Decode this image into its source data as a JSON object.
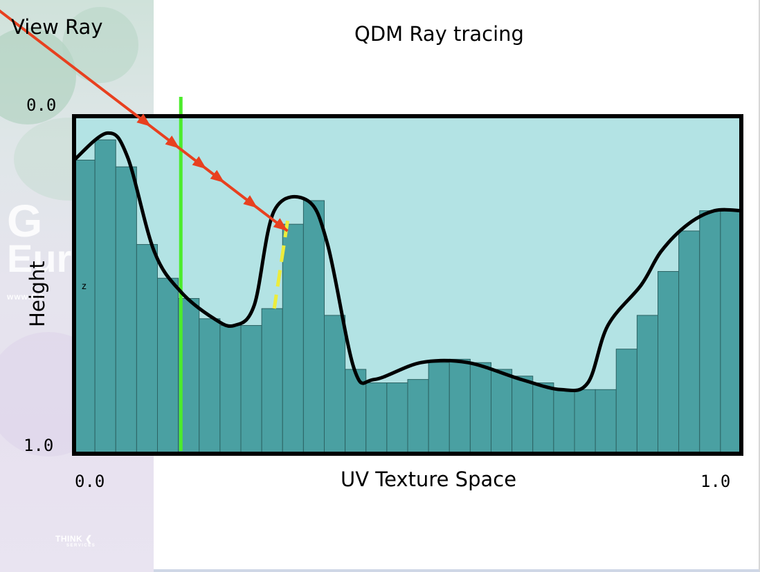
{
  "title": "QDM Ray tracing",
  "view_ray_label": "View Ray",
  "y_axis": {
    "title": "Height",
    "top_tick": "0.0",
    "bottom_tick": "1.0"
  },
  "x_axis": {
    "title": "UV Texture Space",
    "left_tick": "0.0",
    "right_tick": "1.0"
  },
  "z_label": "z",
  "sidebar": {
    "watermark_line1": "G",
    "watermark_line2": "Eur",
    "watermark_url": "www.GD",
    "logo_text": "THINK",
    "logo_sub": "SERVICES"
  },
  "colors": {
    "fill_light": "#b3e3e4",
    "bar_fill": "#4aa0a2",
    "bar_stroke": "#2c6263",
    "curve": "#000000",
    "ray": "#e8401f",
    "vertical_marker": "#4cec2c",
    "dash_marker": "#ecec3c"
  },
  "heightfield": {
    "bar_count": 32,
    "heights": [
      0.87,
      0.93,
      0.85,
      0.62,
      0.52,
      0.46,
      0.4,
      0.38,
      0.38,
      0.43,
      0.68,
      0.75,
      0.41,
      0.25,
      0.21,
      0.21,
      0.22,
      0.27,
      0.28,
      0.27,
      0.25,
      0.23,
      0.21,
      0.19,
      0.19,
      0.19,
      0.31,
      0.41,
      0.54,
      0.66,
      0.72,
      0.72
    ]
  },
  "curve_points": [
    [
      0.0,
      0.87
    ],
    [
      0.05,
      0.95
    ],
    [
      0.08,
      0.88
    ],
    [
      0.12,
      0.6
    ],
    [
      0.16,
      0.48
    ],
    [
      0.21,
      0.4
    ],
    [
      0.24,
      0.38
    ],
    [
      0.27,
      0.44
    ],
    [
      0.3,
      0.72
    ],
    [
      0.35,
      0.75
    ],
    [
      0.38,
      0.62
    ],
    [
      0.42,
      0.25
    ],
    [
      0.45,
      0.22
    ],
    [
      0.52,
      0.27
    ],
    [
      0.59,
      0.27
    ],
    [
      0.67,
      0.22
    ],
    [
      0.73,
      0.19
    ],
    [
      0.77,
      0.21
    ],
    [
      0.8,
      0.38
    ],
    [
      0.85,
      0.5
    ],
    [
      0.88,
      0.6
    ],
    [
      0.92,
      0.68
    ],
    [
      0.96,
      0.72
    ],
    [
      1.0,
      0.72
    ]
  ],
  "view_ray": {
    "start": [
      -0.13,
      1.34
    ],
    "end": [
      0.32,
      0.66
    ]
  },
  "vertical_marker_u": 0.16,
  "dash_marker": {
    "start": [
      0.32,
      0.69
    ],
    "end": [
      0.3,
      0.43
    ]
  }
}
